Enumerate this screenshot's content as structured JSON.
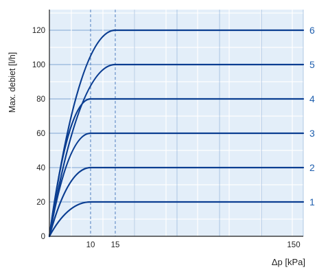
{
  "chart_data": {
    "type": "line",
    "xlabel": "Δp [kPa]",
    "ylabel": "Max. debiet [l/h]",
    "x_ticks": [
      10,
      15,
      150
    ],
    "y_ticks": [
      0,
      20,
      40,
      60,
      80,
      100,
      120
    ],
    "ylim": [
      0,
      120
    ],
    "grid": true,
    "colors": {
      "plot_background": "#e3eef9",
      "grid_minor": "#ffffff",
      "grid_major": "#7fa6d4",
      "line": "#0a3d91",
      "axis": "#1a1a1a",
      "right_labels": "#1f5fae",
      "reference_line": "#4f7fc0"
    },
    "series": [
      {
        "name": "1",
        "max_flow": 20,
        "saturation_dp": 10
      },
      {
        "name": "2",
        "max_flow": 40,
        "saturation_dp": 10
      },
      {
        "name": "3",
        "max_flow": 60,
        "saturation_dp": 10
      },
      {
        "name": "4",
        "max_flow": 80,
        "saturation_dp": 10
      },
      {
        "name": "5",
        "max_flow": 100,
        "saturation_dp": 15
      },
      {
        "name": "6",
        "max_flow": 120,
        "saturation_dp": 15
      }
    ],
    "reference_lines_x": [
      10,
      15
    ]
  }
}
